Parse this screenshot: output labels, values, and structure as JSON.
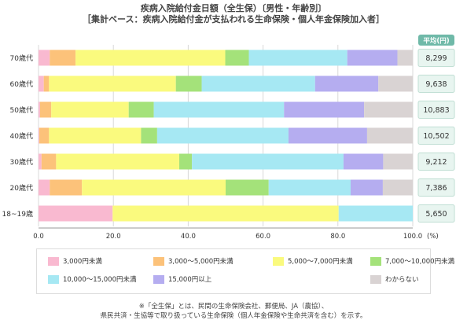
{
  "title": "疾病入院給付金日額（全生保）〔男性・年齢別〕",
  "subtitle": "［集計ベース：疾病入院給付金が支払われる生命保険・個人年金保険加入者］",
  "chart_data": {
    "type": "bar",
    "orientation": "horizontal-stacked",
    "categories": [
      "70歳代",
      "60歳代",
      "50歳代",
      "40歳代",
      "30歳代",
      "20歳代",
      "18~19歳"
    ],
    "series": [
      {
        "name": "3,000円未満",
        "color": "#f9b9d0",
        "values": [
          3.0,
          1.4,
          0.4,
          0.2,
          0.8,
          3.0,
          19.8
        ]
      },
      {
        "name": "3,000～5,000円未満",
        "color": "#fcc27a",
        "values": [
          6.9,
          1.4,
          3.0,
          2.6,
          3.9,
          8.6,
          0.0
        ]
      },
      {
        "name": "5,000～7,000円未満",
        "color": "#fafa7e",
        "values": [
          40.0,
          33.9,
          20.7,
          24.6,
          32.9,
          38.4,
          60.4
        ]
      },
      {
        "name": "7,000～10,000円未満",
        "color": "#a4e27a",
        "values": [
          6.3,
          6.9,
          6.7,
          4.3,
          3.4,
          11.5,
          0.0
        ]
      },
      {
        "name": "10,000～15,000円未満",
        "color": "#a6e8f3",
        "values": [
          26.3,
          30.3,
          34.8,
          35.1,
          40.5,
          21.9,
          19.8
        ]
      },
      {
        "name": "15,000円以上",
        "color": "#b5adf0",
        "values": [
          13.4,
          16.9,
          21.4,
          21.0,
          10.6,
          8.6,
          0.0
        ]
      },
      {
        "name": "わからない",
        "color": "#d9d3d3",
        "values": [
          4.1,
          9.2,
          13.0,
          12.2,
          7.9,
          8.0,
          0.0
        ]
      }
    ],
    "averages": [
      "8,299",
      "9,638",
      "10,883",
      "10,502",
      "9,212",
      "7,386",
      "5,650"
    ],
    "average_header": "平均(円)",
    "xlim": [
      0,
      100
    ],
    "xticks": [
      "0.0",
      "20.0",
      "40.0",
      "60.0",
      "80.0",
      "100.0"
    ],
    "xunit": "(%)",
    "legend_position": "bottom"
  },
  "footnote1": "※「全生保」とは、民間の生命保険会社、郵便局、JA（農協）、",
  "footnote2": "県民共済・生協等で取り扱っている生命保険（個人年金保険や生命共済を含む）を示す。"
}
